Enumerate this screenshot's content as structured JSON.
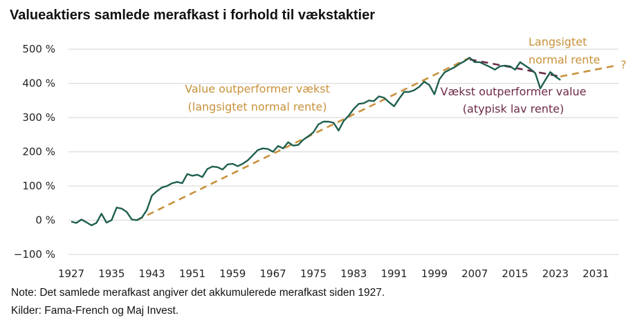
{
  "title": "Valueaktiers samlede merafkast i forhold til vækstaktier",
  "notes": {
    "note": "Note: Det samlede merafkast angiver det akkumulerede merafkast siden 1927.",
    "sources": "Kilder: Fama-French og Maj Invest."
  },
  "colors": {
    "series": "#1e5e4e",
    "trend_normal": "#c8913a",
    "trend_low": "#6e2a48",
    "grid": "#dcdcdc"
  },
  "chart_data": {
    "type": "line",
    "title": "Valueaktiers samlede merafkast i forhold til vækstaktier",
    "xlabel": "",
    "ylabel": "",
    "xlim": [
      1927,
      2036
    ],
    "ylim": [
      -100,
      500
    ],
    "grid": true,
    "y_ticks": [
      -100,
      0,
      100,
      200,
      300,
      400,
      500
    ],
    "y_tick_labels": [
      "−100 %",
      "0 %",
      "100 %",
      "200 %",
      "300 %",
      "400 %",
      "500 %"
    ],
    "x_ticks": [
      1927,
      1935,
      1943,
      1951,
      1959,
      1967,
      1975,
      1983,
      1991,
      1999,
      2007,
      2015,
      2023,
      2031
    ],
    "x_tick_labels": [
      "1927",
      "1935",
      "1943",
      "1951",
      "1959",
      "1967",
      "1975",
      "1983",
      "1991",
      "1999",
      "2007",
      "2015",
      "2023",
      "2031"
    ],
    "series": [
      {
        "name": "Samlet merafkast",
        "start_year": 1927,
        "values": [
          -4,
          -8,
          2,
          -6,
          -15,
          -8,
          19,
          -7,
          0,
          37,
          34,
          24,
          2,
          0,
          8,
          30,
          72,
          85,
          96,
          100,
          108,
          112,
          108,
          135,
          130,
          133,
          126,
          150,
          157,
          155,
          148,
          163,
          165,
          158,
          165,
          175,
          190,
          205,
          210,
          208,
          200,
          217,
          210,
          228,
          218,
          220,
          235,
          245,
          257,
          280,
          288,
          288,
          285,
          262,
          290,
          305,
          325,
          340,
          342,
          350,
          348,
          362,
          358,
          345,
          333,
          355,
          375,
          375,
          380,
          390,
          405,
          395,
          368,
          412,
          432,
          440,
          447,
          457,
          465,
          475,
          462,
          462,
          455,
          448,
          440,
          450,
          452,
          450,
          440,
          462,
          452,
          442,
          430,
          385,
          410,
          433,
          420,
          410
        ]
      }
    ],
    "trend_lines": [
      {
        "name": "Value outperformer vækst (langsigtet normal rente)",
        "points": [
          [
            1940,
            0
          ],
          [
            2006,
            475
          ]
        ]
      },
      {
        "name": "Vækst outperformer value (atypisk lav rente)",
        "points": [
          [
            2006,
            470
          ],
          [
            2024,
            420
          ]
        ]
      },
      {
        "name": "Langsigtet normal rente",
        "points": [
          [
            2024,
            420
          ],
          [
            2035,
            452
          ]
        ]
      }
    ],
    "annotations": {
      "value_line1": "Value outperformer vækst",
      "value_line2": "(langsigtet normal rente)",
      "growth_line1": "Vækst outperformer value",
      "growth_line2": "(atypisk lav rente)",
      "normal_line1": "Langsigtet",
      "normal_line2": "normal rente",
      "question": "?"
    }
  }
}
